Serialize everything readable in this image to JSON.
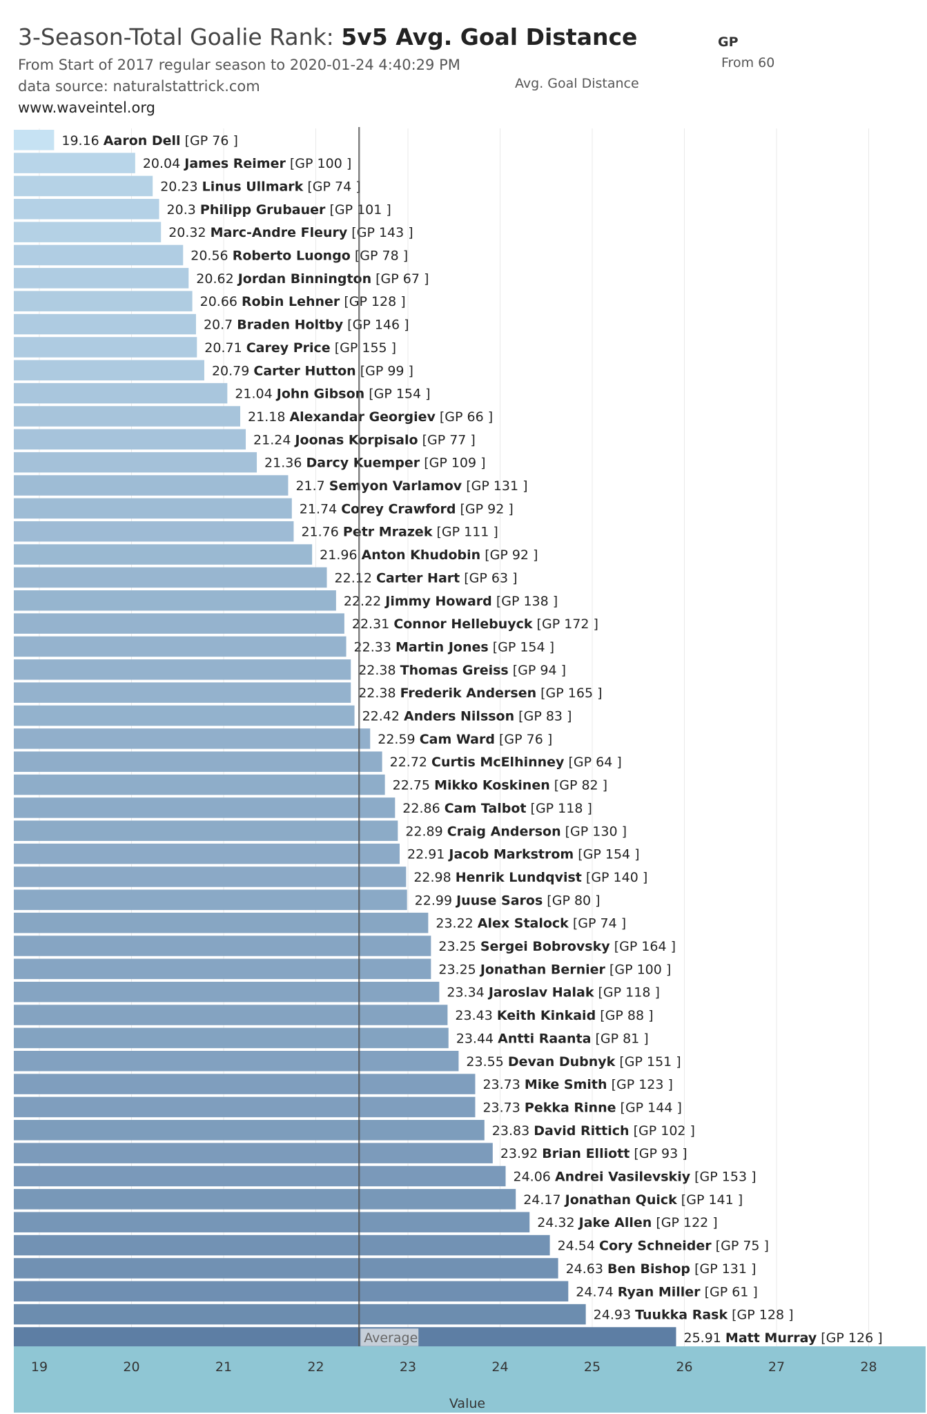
{
  "header": {
    "title_prefix": "3-Season-Total Goalie Rank: ",
    "title_bold": "5v5 Avg. Goal Distance",
    "subtitle": "From Start of 2017 regular season to 2020-01-24 4:40:29 PM",
    "source": "data source: naturalstattrick.com",
    "website": "www.waveintel.org"
  },
  "legend": {
    "gp_title": "GP",
    "gp_filter": "From 60",
    "color_title": "Avg. Goal Distance"
  },
  "chart_data": {
    "type": "bar",
    "orientation": "horizontal",
    "xlabel": "Value",
    "xlim": [
      18.7,
      28.6
    ],
    "xticks": [
      19,
      20,
      21,
      22,
      23,
      24,
      25,
      26,
      27,
      28
    ],
    "reference_line": {
      "label": "Average",
      "value": 22.47
    },
    "color_scale": {
      "low": "#c6e2f3",
      "high": "#5d7ea4"
    },
    "axis_band_color": "#8fc6d4",
    "bars": [
      {
        "name": "Aaron Dell",
        "value": 19.16,
        "gp": 76
      },
      {
        "name": "James Reimer",
        "value": 20.04,
        "gp": 100
      },
      {
        "name": "Linus Ullmark",
        "value": 20.23,
        "gp": 74
      },
      {
        "name": "Philipp Grubauer",
        "value": 20.3,
        "gp": 101
      },
      {
        "name": "Marc-Andre Fleury",
        "value": 20.32,
        "gp": 143
      },
      {
        "name": "Roberto Luongo",
        "value": 20.56,
        "gp": 78
      },
      {
        "name": "Jordan Binnington",
        "value": 20.62,
        "gp": 67
      },
      {
        "name": "Robin Lehner",
        "value": 20.66,
        "gp": 128
      },
      {
        "name": "Braden Holtby",
        "value": 20.7,
        "gp": 146
      },
      {
        "name": "Carey Price",
        "value": 20.71,
        "gp": 155
      },
      {
        "name": "Carter Hutton",
        "value": 20.79,
        "gp": 99
      },
      {
        "name": "John Gibson",
        "value": 21.04,
        "gp": 154
      },
      {
        "name": "Alexandar Georgiev",
        "value": 21.18,
        "gp": 66
      },
      {
        "name": "Joonas Korpisalo",
        "value": 21.24,
        "gp": 77
      },
      {
        "name": "Darcy Kuemper",
        "value": 21.36,
        "gp": 109
      },
      {
        "name": "Semyon Varlamov",
        "value": 21.7,
        "gp": 131
      },
      {
        "name": "Corey Crawford",
        "value": 21.74,
        "gp": 92
      },
      {
        "name": "Petr Mrazek",
        "value": 21.76,
        "gp": 111
      },
      {
        "name": "Anton Khudobin",
        "value": 21.96,
        "gp": 92
      },
      {
        "name": "Carter Hart",
        "value": 22.12,
        "gp": 63
      },
      {
        "name": "Jimmy Howard",
        "value": 22.22,
        "gp": 138
      },
      {
        "name": "Connor Hellebuyck",
        "value": 22.31,
        "gp": 172
      },
      {
        "name": "Martin Jones",
        "value": 22.33,
        "gp": 154
      },
      {
        "name": "Thomas Greiss",
        "value": 22.38,
        "gp": 94
      },
      {
        "name": "Frederik Andersen",
        "value": 22.38,
        "gp": 165
      },
      {
        "name": "Anders Nilsson",
        "value": 22.42,
        "gp": 83
      },
      {
        "name": "Cam Ward",
        "value": 22.59,
        "gp": 76
      },
      {
        "name": "Curtis McElhinney",
        "value": 22.72,
        "gp": 64
      },
      {
        "name": "Mikko Koskinen",
        "value": 22.75,
        "gp": 82
      },
      {
        "name": "Cam Talbot",
        "value": 22.86,
        "gp": 118
      },
      {
        "name": "Craig Anderson",
        "value": 22.89,
        "gp": 130
      },
      {
        "name": "Jacob Markstrom",
        "value": 22.91,
        "gp": 154
      },
      {
        "name": "Henrik Lundqvist",
        "value": 22.98,
        "gp": 140
      },
      {
        "name": "Juuse Saros",
        "value": 22.99,
        "gp": 80
      },
      {
        "name": "Alex Stalock",
        "value": 23.22,
        "gp": 74
      },
      {
        "name": "Sergei Bobrovsky",
        "value": 23.25,
        "gp": 164
      },
      {
        "name": "Jonathan Bernier",
        "value": 23.25,
        "gp": 100
      },
      {
        "name": "Jaroslav Halak",
        "value": 23.34,
        "gp": 118
      },
      {
        "name": "Keith Kinkaid",
        "value": 23.43,
        "gp": 88
      },
      {
        "name": "Antti Raanta",
        "value": 23.44,
        "gp": 81
      },
      {
        "name": "Devan Dubnyk",
        "value": 23.55,
        "gp": 151
      },
      {
        "name": "Mike Smith",
        "value": 23.73,
        "gp": 123
      },
      {
        "name": "Pekka Rinne",
        "value": 23.73,
        "gp": 144
      },
      {
        "name": "David Rittich",
        "value": 23.83,
        "gp": 102
      },
      {
        "name": "Brian Elliott",
        "value": 23.92,
        "gp": 93
      },
      {
        "name": "Andrei Vasilevskiy",
        "value": 24.06,
        "gp": 153
      },
      {
        "name": "Jonathan Quick",
        "value": 24.17,
        "gp": 141
      },
      {
        "name": "Jake Allen",
        "value": 24.32,
        "gp": 122
      },
      {
        "name": "Cory Schneider",
        "value": 24.54,
        "gp": 75
      },
      {
        "name": "Ben Bishop",
        "value": 24.63,
        "gp": 131
      },
      {
        "name": "Ryan Miller",
        "value": 24.74,
        "gp": 61
      },
      {
        "name": "Tuukka Rask",
        "value": 24.93,
        "gp": 128
      },
      {
        "name": "Matt Murray",
        "value": 25.91,
        "gp": 126
      }
    ]
  }
}
